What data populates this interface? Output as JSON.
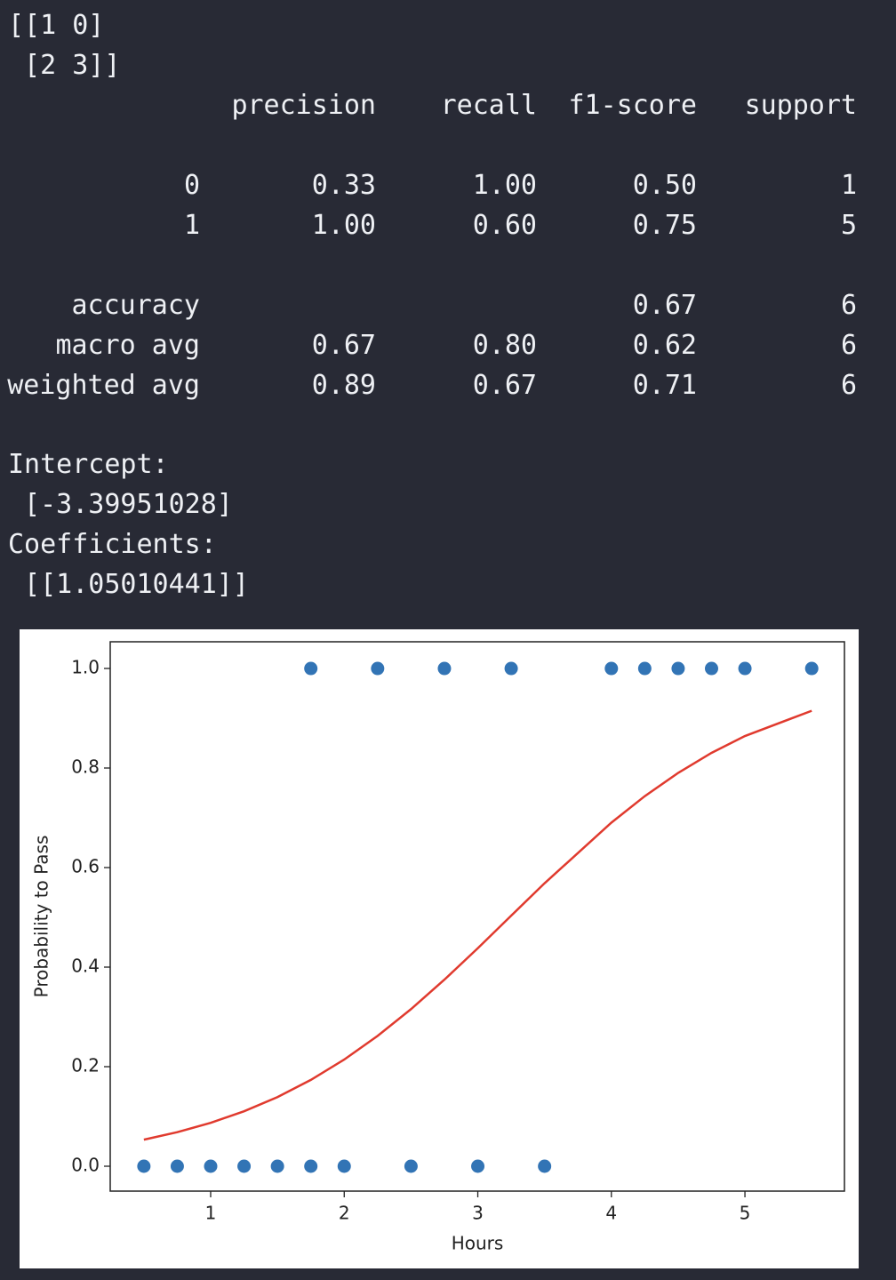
{
  "console": {
    "matrix": [
      "[[1 0]",
      " [2 3]]"
    ],
    "report": {
      "columns": [
        "precision",
        "recall",
        "f1-score",
        "support"
      ],
      "rows": [
        {
          "label": "0",
          "cells": [
            "0.33",
            "1.00",
            "0.50",
            "1"
          ]
        },
        {
          "label": "1",
          "cells": [
            "1.00",
            "0.60",
            "0.75",
            "5"
          ]
        },
        {
          "label": "accuracy",
          "cells": [
            null,
            null,
            "0.67",
            "6"
          ]
        },
        {
          "label": "macro avg",
          "cells": [
            "0.67",
            "0.80",
            "0.62",
            "6"
          ]
        },
        {
          "label": "weighted avg",
          "cells": [
            "0.89",
            "0.67",
            "0.71",
            "6"
          ]
        }
      ]
    },
    "tail": [
      "Intercept:",
      " [-3.39951028]",
      "Coefficients:",
      " [[1.05010441]]"
    ]
  },
  "chart_data": {
    "type": "scatter",
    "x_label": "Hours",
    "y_label": "Probability to Pass",
    "x": [
      0.5,
      0.75,
      1,
      1.25,
      1.5,
      1.75,
      1.75,
      2,
      2.25,
      2.5,
      2.75,
      3,
      3.25,
      3.5,
      4,
      4.25,
      4.5,
      4.75,
      5,
      5.5
    ],
    "series": [
      {
        "type": "scatter",
        "color": "#3274b5",
        "values": [
          0,
          0,
          0,
          0,
          0,
          0,
          1,
          0,
          1,
          0,
          1,
          0,
          1,
          0,
          1,
          1,
          1,
          1,
          1,
          1
        ]
      },
      {
        "type": "line",
        "color": "#e03a2e",
        "values": [
          0.0534,
          0.0684,
          0.0871,
          0.1104,
          0.1389,
          0.1734,
          0.1734,
          0.2143,
          0.2618,
          0.3156,
          0.3748,
          0.438,
          0.5034,
          0.5685,
          0.6902,
          0.7434,
          0.7902,
          0.8304,
          0.8642,
          0.915
        ]
      }
    ],
    "xlim": [
      0.248,
      5.745
    ],
    "ylim": [
      -0.05,
      1.0536
    ],
    "xticks": [
      1,
      2,
      3,
      4,
      5
    ],
    "yticks": [
      {
        "value": 0,
        "label": "0.0"
      },
      {
        "value": 0.2,
        "label": "0.2"
      },
      {
        "value": 0.4,
        "label": "0.4"
      },
      {
        "value": 0.6,
        "label": "0.6"
      },
      {
        "value": 0.8,
        "label": "0.8"
      },
      {
        "value": 1,
        "label": "1.0"
      }
    ]
  }
}
